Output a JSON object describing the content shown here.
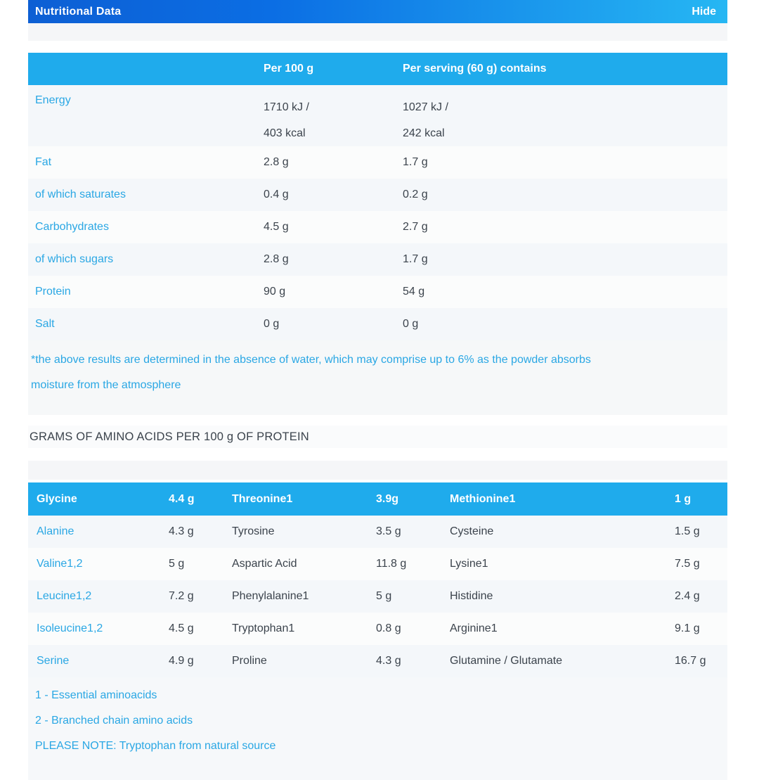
{
  "panel": {
    "title": "Nutritional Data",
    "toggle_label": "Hide"
  },
  "colors": {
    "bar_gradient_left": "#0d5fd4",
    "bar_gradient_right": "#26b7f3",
    "table_header_blue": "#1fabec",
    "link_blue": "#2aa7e4",
    "dark_text": "#3b434c",
    "stripe_light": "#f4f7fa"
  },
  "nutrition_table": {
    "col_per100": "Per 100 g",
    "col_serving": "Per serving (60 g) contains",
    "rows": [
      {
        "label": "Energy",
        "per100_l1": "1710 kJ /",
        "per100_l2": "403 kcal",
        "serving_l1": "1027 kJ /",
        "serving_l2": "242 kcal"
      },
      {
        "label": "Fat",
        "per100": "2.8 g",
        "serving": "1.7 g"
      },
      {
        "label": "of which saturates",
        "per100": "0.4 g",
        "serving": "0.2 g"
      },
      {
        "label": "Carbohydrates",
        "per100": "4.5 g",
        "serving": "2.7 g"
      },
      {
        "label": "of which sugars",
        "per100": "2.8 g",
        "serving": "1.7 g"
      },
      {
        "label": "Protein",
        "per100": "90 g",
        "serving": "54 g"
      },
      {
        "label": "Salt",
        "per100": "0 g",
        "serving": "0 g"
      }
    ],
    "footnote_line1": "*the above results are determined in the absence of water, which may comprise up to 6% as the powder absorbs",
    "footnote_line2": "moisture from the atmosphere"
  },
  "amino_section": {
    "title": "GRAMS OF AMINO ACIDS PER 100 g OF PROTEIN",
    "header_row": {
      "c1": "Glycine",
      "v1": "4.4 g",
      "c2": "Threonine1",
      "v2": "3.9g",
      "c3": "Methionine1",
      "v3": "1 g"
    },
    "rows": [
      {
        "c1": "Alanine",
        "v1": "4.3 g",
        "c2": "Tyrosine",
        "v2": "3.5 g",
        "c3": "Cysteine",
        "v3": "1.5 g"
      },
      {
        "c1": "Valine1,2",
        "v1": "5 g",
        "c2": "Aspartic Acid",
        "v2": "11.8 g",
        "c3": "Lysine1",
        "v3": "7.5 g"
      },
      {
        "c1": "Leucine1,2",
        "v1": "7.2 g",
        "c2": "Phenylalanine1",
        "v2": "5 g",
        "c3": "Histidine",
        "v3": "2.4 g"
      },
      {
        "c1": "Isoleucine1,2",
        "v1": "4.5 g",
        "c2": "Tryptophan1",
        "v2": "0.8 g",
        "c3": "Arginine1",
        "v3": "9.1 g"
      },
      {
        "c1": "Serine",
        "v1": "4.9 g",
        "c2": "Proline",
        "v2": "4.3 g",
        "c3": "Glutamine / Glutamate",
        "v3": "16.7 g"
      }
    ],
    "footnotes": [
      "1 - Essential aminoacids",
      "2 - Branched chain amino acids",
      "PLEASE NOTE: Tryptophan from natural source"
    ]
  }
}
